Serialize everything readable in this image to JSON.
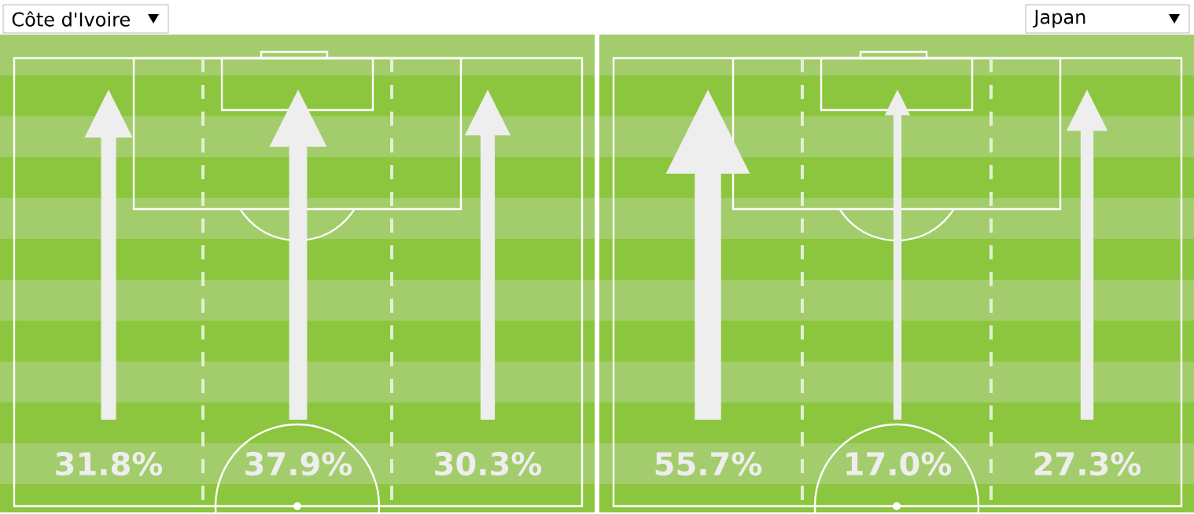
{
  "chart_data": [
    {
      "type": "other",
      "title": "Côte d'Ivoire",
      "categories": [
        null,
        null,
        null
      ],
      "values": [
        31.8,
        37.9,
        30.3
      ],
      "value_labels": [
        "31.8%",
        "37.9%",
        "30.3%"
      ],
      "color": "#eeeeee"
    },
    {
      "type": "other",
      "title": "Japan",
      "categories": [
        null,
        null,
        null
      ],
      "values": [
        55.7,
        17.0,
        27.3
      ],
      "value_labels": [
        "55.7%",
        "17.0%",
        "27.3%"
      ],
      "color": "#eeeeee"
    }
  ]
}
